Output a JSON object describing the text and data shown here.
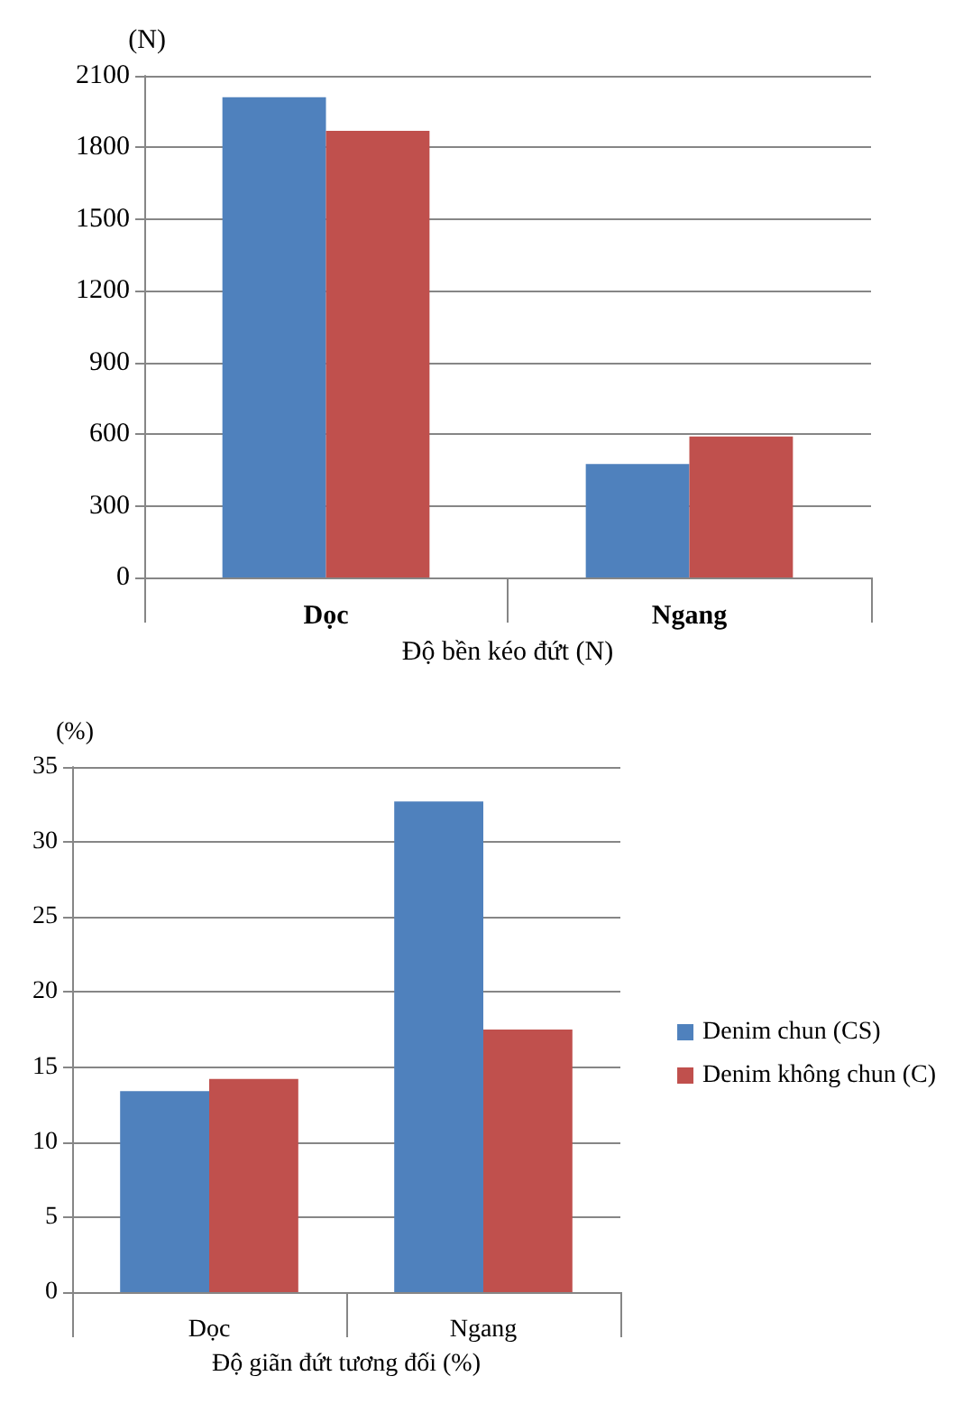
{
  "chart_data": [
    {
      "type": "bar",
      "xlabel": "Độ bền kéo đứt (N)",
      "ylabel": "(N)",
      "categories": [
        "Dọc",
        "Ngang"
      ],
      "series": [
        {
          "color": "#4f81bd",
          "values": [
            2010,
            475
          ]
        },
        {
          "color": "#c0504d",
          "values": [
            1870,
            590
          ]
        }
      ],
      "ylim": [
        0,
        2100
      ],
      "yticks": [
        0,
        300,
        600,
        900,
        1200,
        1500,
        1800,
        2100
      ],
      "grid": "y",
      "legend": false
    },
    {
      "type": "bar",
      "xlabel": "Độ giãn đứt tương đối (%)",
      "ylabel": "(%)",
      "categories": [
        "Dọc",
        "Ngang"
      ],
      "series": [
        {
          "name": "Denim chun (CS)",
          "color": "#4f81bd",
          "values": [
            13.4,
            32.7
          ]
        },
        {
          "name": "Denim không chun (C)",
          "color": "#c0504d",
          "values": [
            14.2,
            17.5
          ]
        }
      ],
      "ylim": [
        0,
        35
      ],
      "yticks": [
        0,
        5,
        10,
        15,
        20,
        25,
        30,
        35
      ],
      "grid": "y",
      "legend": "right"
    }
  ]
}
